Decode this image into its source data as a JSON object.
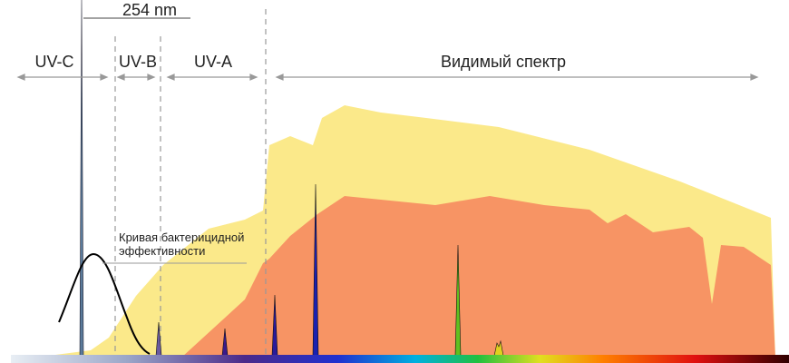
{
  "wavelength_label": "254 nm",
  "bands": {
    "uv_c": "UV-C",
    "uv_b": "UV-B",
    "uv_a": "UV-A",
    "visible": "Видимый спектр"
  },
  "curve_label": {
    "line1": "Кривая бактерицидной",
    "line2": "эффективности"
  }
}
